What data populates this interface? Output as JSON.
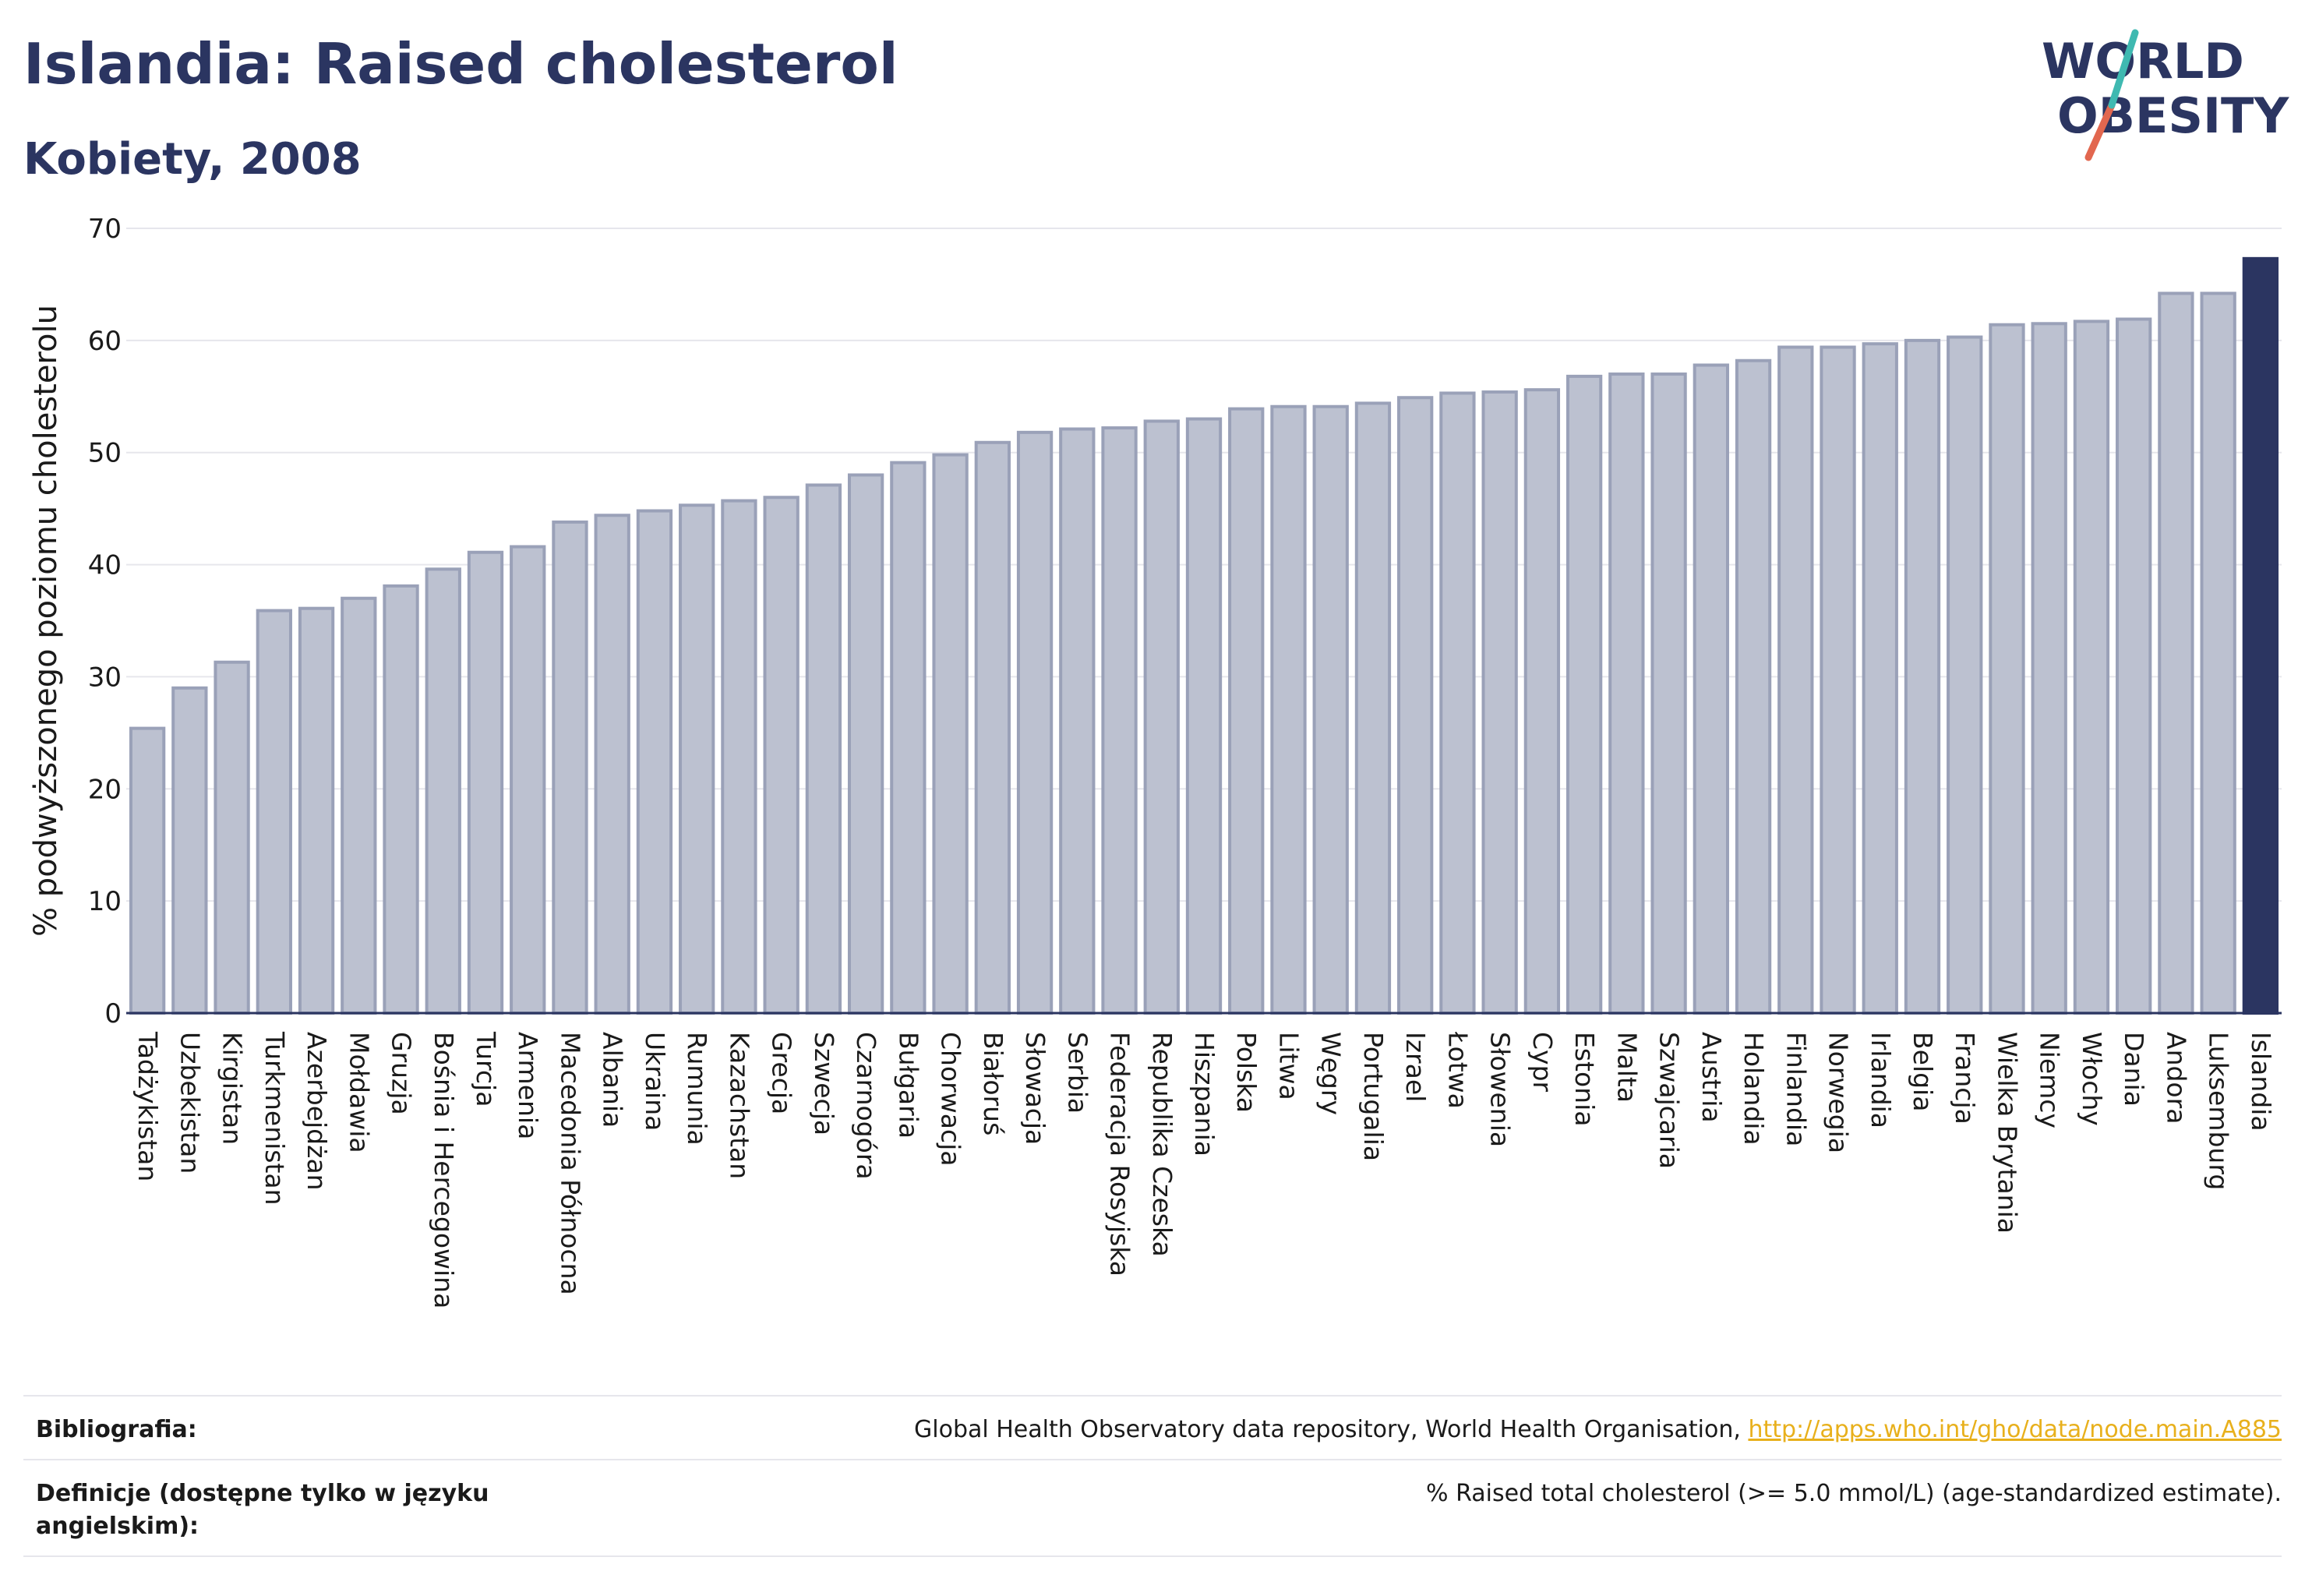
{
  "header": {
    "title": "Islandia: Raised cholesterol",
    "subtitle": "Kobiety, 2008"
  },
  "logo": {
    "line1": "WORLD",
    "line2": "OBESITY"
  },
  "colors": {
    "bar": "#bcc1d0",
    "bar_stroke": "#9aa1b8",
    "highlight": "#2b3561",
    "grid": "#e6e6ec",
    "text": "#2b3561",
    "link": "#e8b01c"
  },
  "chart_data": {
    "type": "bar",
    "title": "Islandia: Raised cholesterol",
    "subtitle": "Kobiety, 2008",
    "ylabel": "% podwyższonego poziomu cholesterolu",
    "xlabel": "",
    "ylim": [
      0,
      70
    ],
    "yticks": [
      0,
      10,
      20,
      30,
      40,
      50,
      60,
      70
    ],
    "grid": true,
    "highlight": "Islandia",
    "categories": [
      "Tadżykistan",
      "Uzbekistan",
      "Kirgistan",
      "Turkmenistan",
      "Azerbejdżan",
      "Mołdawia",
      "Gruzja",
      "Bośnia i Hercegowina",
      "Turcja",
      "Armenia",
      "Macedonia Północna",
      "Albania",
      "Ukraina",
      "Rumunia",
      "Kazachstan",
      "Grecja",
      "Szwecja",
      "Czarnogóra",
      "Bułgaria",
      "Chorwacja",
      "Białoruś",
      "Słowacja",
      "Serbia",
      "Federacja Rosyjska",
      "Republika Czeska",
      "Hiszpania",
      "Polska",
      "Litwa",
      "Węgry",
      "Portugalia",
      "Izrael",
      "Łotwa",
      "Słowenia",
      "Cypr",
      "Estonia",
      "Malta",
      "Szwajcaria",
      "Austria",
      "Holandia",
      "Finlandia",
      "Norwegia",
      "Irlandia",
      "Belgia",
      "Francja",
      "Wielka Brytania",
      "Niemcy",
      "Włochy",
      "Dania",
      "Andora",
      "Luksemburg",
      "Islandia"
    ],
    "values": [
      25.4,
      29.0,
      31.3,
      35.9,
      36.1,
      37.0,
      38.1,
      39.6,
      41.1,
      41.6,
      43.8,
      44.4,
      44.8,
      45.3,
      45.7,
      46.0,
      47.1,
      48.0,
      49.1,
      49.8,
      50.9,
      51.8,
      52.1,
      52.2,
      52.8,
      53.0,
      53.9,
      54.1,
      54.1,
      54.4,
      54.9,
      55.3,
      55.4,
      55.6,
      56.8,
      57.0,
      57.0,
      57.8,
      58.2,
      59.4,
      59.4,
      59.7,
      60.0,
      60.3,
      61.4,
      61.5,
      61.7,
      61.9,
      64.2,
      64.2,
      67.3
    ]
  },
  "footer": {
    "bibliography_label": "Bibliografia:",
    "bibliography_text": "Global Health Observatory data repository, World Health Organisation, ",
    "bibliography_link": "http://apps.who.int/gho/data/node.main.A885",
    "definitions_label": "Definicje (dostępne tylko w języku angielskim):",
    "definitions_text": "% Raised total cholesterol (>= 5.0 mmol/L) (age-standardized estimate)."
  }
}
